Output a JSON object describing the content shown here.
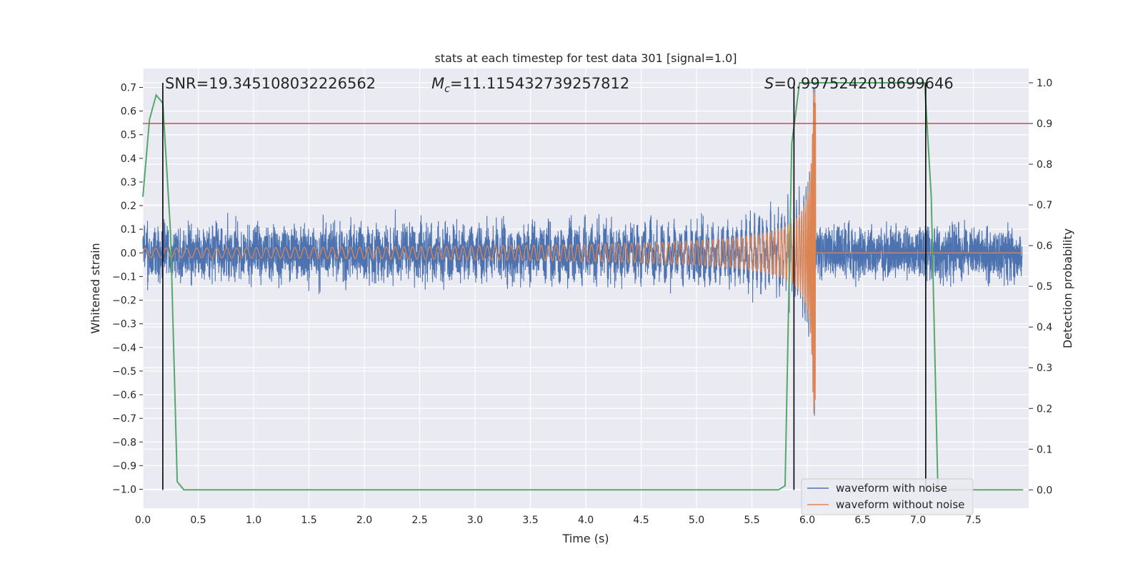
{
  "chart_data": {
    "type": "line",
    "title": "stats at each timestep for test data 301 [signal=1.0]",
    "xlabel": "Time (s)",
    "ylabel": "Whitened strain",
    "y2label": "Detection probability",
    "xlim": [
      0.0,
      8.0
    ],
    "ylim": [
      -1.08,
      0.78
    ],
    "y2lim": [
      -0.045,
      1.035
    ],
    "x_ticks": [
      "0.0",
      "0.5",
      "1.0",
      "1.5",
      "2.0",
      "2.5",
      "3.0",
      "3.5",
      "4.0",
      "4.5",
      "5.0",
      "5.5",
      "6.0",
      "6.5",
      "7.0",
      "7.5"
    ],
    "x_tick_values": [
      0,
      0.5,
      1,
      1.5,
      2,
      2.5,
      3,
      3.5,
      4,
      4.5,
      5,
      5.5,
      6,
      6.5,
      7,
      7.5
    ],
    "y_ticks": [
      "0.7",
      "0.6",
      "0.5",
      "0.4",
      "0.3",
      "0.2",
      "0.1",
      "0.0",
      "−0.1",
      "−0.2",
      "−0.3",
      "−0.4",
      "−0.5",
      "−0.6",
      "−0.7",
      "−0.8",
      "−0.9",
      "−1.0"
    ],
    "y_tick_values": [
      0.7,
      0.6,
      0.5,
      0.4,
      0.3,
      0.2,
      0.1,
      0,
      -0.1,
      -0.2,
      -0.3,
      -0.4,
      -0.5,
      -0.6,
      -0.7,
      -0.8,
      -0.9,
      -1.0
    ],
    "y2_ticks": [
      "1.0",
      "0.9",
      "0.8",
      "0.7",
      "0.6",
      "0.5",
      "0.4",
      "0.3",
      "0.2",
      "0.1",
      "0.0"
    ],
    "y2_tick_values": [
      1.0,
      0.9,
      0.8,
      0.7,
      0.6,
      0.5,
      0.4,
      0.3,
      0.2,
      0.1,
      0.0
    ],
    "annotations": {
      "snr": "SNR=19.345108032226562",
      "mc_symbol": "M",
      "mc_sub": "c",
      "mc_value": "=11.115432739257812",
      "s_symbol": "S",
      "s_value": "=0.9975242018699646"
    },
    "threshold_prob": 0.9,
    "vertical_lines_x": [
      0.18,
      5.88,
      7.07
    ],
    "merger_time": 6.06,
    "noise_amplitude": 0.14,
    "signal_amplitude_start": 0.02,
    "signal_amplitude_peak": 0.68,
    "detection_probability": {
      "x": [
        0.0,
        0.06,
        0.12,
        0.18,
        0.25,
        0.31,
        0.37,
        0.43,
        5.74,
        5.8,
        5.86,
        5.93,
        6.0,
        7.06,
        7.12,
        7.18,
        7.25,
        7.95
      ],
      "y": [
        0.72,
        0.91,
        0.97,
        0.95,
        0.63,
        0.02,
        0.0,
        0.0,
        0.0,
        0.01,
        0.85,
        1.0,
        1.0,
        1.0,
        0.72,
        0.0,
        0.0,
        0.0
      ]
    },
    "series": [
      {
        "name": "waveform with noise",
        "color": "#4c72b0"
      },
      {
        "name": "waveform without noise",
        "color": "#dd8452"
      },
      {
        "name": "detection probability",
        "color": "#55a868"
      },
      {
        "name": "threshold",
        "color": "#c44e52"
      }
    ],
    "legend": {
      "position": "bottom-right",
      "items": [
        "waveform with noise",
        "waveform without noise"
      ]
    },
    "grid": true
  }
}
